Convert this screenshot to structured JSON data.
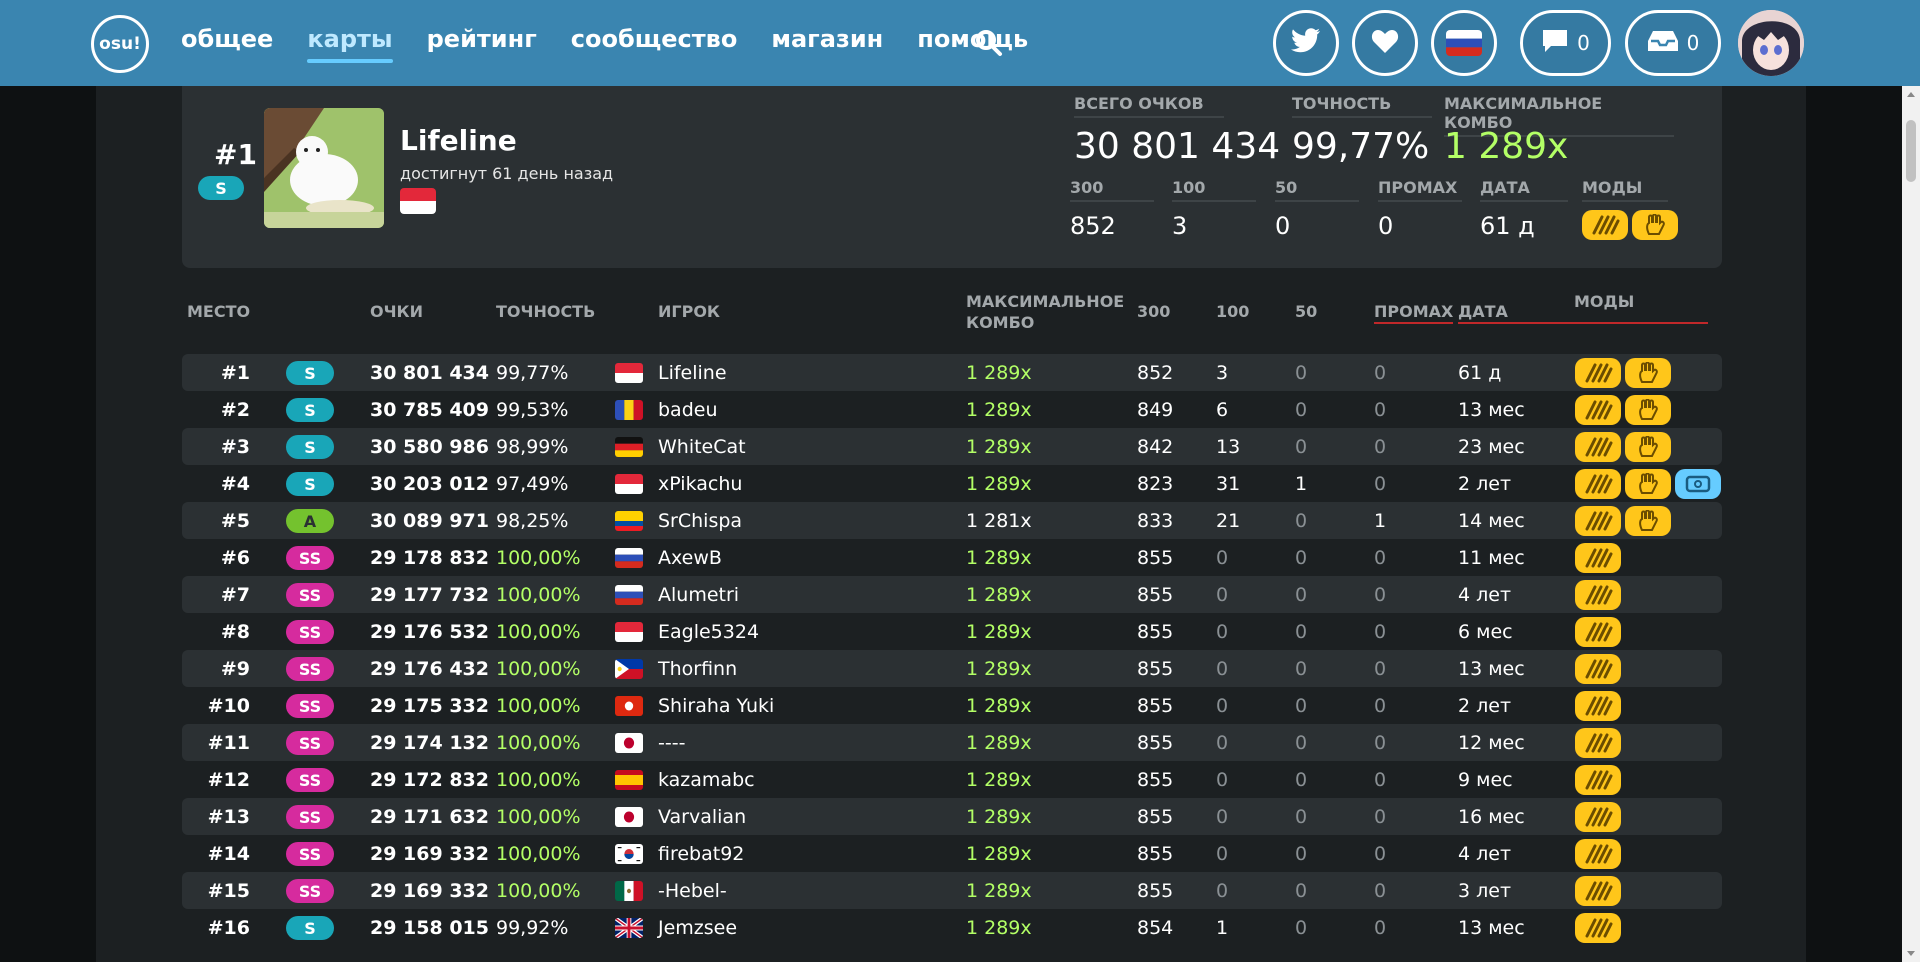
{
  "nav": {
    "logo": "osu!",
    "items": [
      "общее",
      "карты",
      "рейтинг",
      "сообщество",
      "магазин",
      "помощь"
    ],
    "active_index": 1,
    "chat_count": "0",
    "notifications_count": "0"
  },
  "top_score": {
    "rank": "#1",
    "grade": "S",
    "player": "Lifeline",
    "achieved": "достигнут 61 день назад",
    "flag": "SG",
    "labels": {
      "total_score": "ВСЕГО ОЧКОВ",
      "accuracy": "ТОЧНОСТЬ",
      "max_combo": "МАКСИМАЛЬНОЕ КОМБО",
      "c300": "300",
      "c100": "100",
      "c50": "50",
      "miss": "ПРОМАХ",
      "date": "ДАТА",
      "mods": "МОДЫ"
    },
    "total_score": "30 801 434",
    "accuracy": "99,77%",
    "max_combo": "1 289x",
    "c300": "852",
    "c100": "3",
    "c50": "0",
    "miss": "0",
    "date": "61 д",
    "mods": [
      "HD",
      "NF"
    ]
  },
  "table": {
    "headers": {
      "rank": "МЕСТО",
      "score": "ОЧКИ",
      "accuracy": "ТОЧНОСТЬ",
      "player": "ИГРОК",
      "combo_line1": "МАКСИМАЛЬНОЕ",
      "combo_line2": "КОМБО",
      "c300": "300",
      "c100": "100",
      "c50": "50",
      "miss": "ПРОМАХ",
      "date": "ДАТА",
      "mods": "МОДЫ"
    },
    "rows": [
      {
        "rank": "#1",
        "grade": "S",
        "score": "30 801 434",
        "acc": "99,77%",
        "flag": "SG",
        "player": "Lifeline",
        "combo": "1 289x",
        "full": true,
        "c300": "852",
        "c100": "3",
        "c50": "0",
        "miss": "0",
        "date": "61 д",
        "mods": [
          "HD",
          "NF"
        ]
      },
      {
        "rank": "#2",
        "grade": "S",
        "score": "30 785 409",
        "acc": "99,53%",
        "flag": "RO",
        "player": "badeu",
        "combo": "1 289x",
        "full": true,
        "c300": "849",
        "c100": "6",
        "c50": "0",
        "miss": "0",
        "date": "13 мес",
        "mods": [
          "HD",
          "NF"
        ]
      },
      {
        "rank": "#3",
        "grade": "S",
        "score": "30 580 986",
        "acc": "98,99%",
        "flag": "DE",
        "player": "WhiteCat",
        "combo": "1 289x",
        "full": true,
        "c300": "842",
        "c100": "13",
        "c50": "0",
        "miss": "0",
        "date": "23 мес",
        "mods": [
          "HD",
          "NF"
        ]
      },
      {
        "rank": "#4",
        "grade": "S",
        "score": "30 203 012",
        "acc": "97,49%",
        "flag": "SG",
        "player": "xPikachu",
        "combo": "1 289x",
        "full": true,
        "c300": "823",
        "c100": "31",
        "c50": "1",
        "miss": "0",
        "date": "2 лет",
        "mods": [
          "HD",
          "NF",
          "TD"
        ]
      },
      {
        "rank": "#5",
        "grade": "A",
        "score": "30 089 971",
        "acc": "98,25%",
        "flag": "EC",
        "player": "SrChispa",
        "combo": "1 281x",
        "full": false,
        "c300": "833",
        "c100": "21",
        "c50": "0",
        "miss": "1",
        "date": "14 мес",
        "mods": [
          "HD",
          "NF"
        ]
      },
      {
        "rank": "#6",
        "grade": "SS",
        "score": "29 178 832",
        "acc": "100,00%",
        "flag": "RU",
        "player": "AxewB",
        "combo": "1 289x",
        "full": true,
        "c300": "855",
        "c100": "0",
        "c50": "0",
        "miss": "0",
        "date": "11 мес",
        "mods": [
          "HD"
        ]
      },
      {
        "rank": "#7",
        "grade": "SS",
        "score": "29 177 732",
        "acc": "100,00%",
        "flag": "RU",
        "player": "Alumetri",
        "combo": "1 289x",
        "full": true,
        "c300": "855",
        "c100": "0",
        "c50": "0",
        "miss": "0",
        "date": "4 лет",
        "mods": [
          "HD"
        ]
      },
      {
        "rank": "#8",
        "grade": "SS",
        "score": "29 176 532",
        "acc": "100,00%",
        "flag": "SG",
        "player": "Eagle5324",
        "combo": "1 289x",
        "full": true,
        "c300": "855",
        "c100": "0",
        "c50": "0",
        "miss": "0",
        "date": "6 мес",
        "mods": [
          "HD"
        ]
      },
      {
        "rank": "#9",
        "grade": "SS",
        "score": "29 176 432",
        "acc": "100,00%",
        "flag": "PH",
        "player": "Thorfinn",
        "combo": "1 289x",
        "full": true,
        "c300": "855",
        "c100": "0",
        "c50": "0",
        "miss": "0",
        "date": "13 мес",
        "mods": [
          "HD"
        ]
      },
      {
        "rank": "#10",
        "grade": "SS",
        "score": "29 175 332",
        "acc": "100,00%",
        "flag": "HK",
        "player": "Shiraha Yuki",
        "combo": "1 289x",
        "full": true,
        "c300": "855",
        "c100": "0",
        "c50": "0",
        "miss": "0",
        "date": "2 лет",
        "mods": [
          "HD"
        ]
      },
      {
        "rank": "#11",
        "grade": "SS",
        "score": "29 174 132",
        "acc": "100,00%",
        "flag": "JP",
        "player": "----",
        "combo": "1 289x",
        "full": true,
        "c300": "855",
        "c100": "0",
        "c50": "0",
        "miss": "0",
        "date": "12 мес",
        "mods": [
          "HD"
        ]
      },
      {
        "rank": "#12",
        "grade": "SS",
        "score": "29 172 832",
        "acc": "100,00%",
        "flag": "ES",
        "player": "kazamabc",
        "combo": "1 289x",
        "full": true,
        "c300": "855",
        "c100": "0",
        "c50": "0",
        "miss": "0",
        "date": "9 мес",
        "mods": [
          "HD"
        ]
      },
      {
        "rank": "#13",
        "grade": "SS",
        "score": "29 171 632",
        "acc": "100,00%",
        "flag": "JP",
        "player": "Varvalian",
        "combo": "1 289x",
        "full": true,
        "c300": "855",
        "c100": "0",
        "c50": "0",
        "miss": "0",
        "date": "16 мес",
        "mods": [
          "HD"
        ]
      },
      {
        "rank": "#14",
        "grade": "SS",
        "score": "29 169 332",
        "acc": "100,00%",
        "flag": "KR",
        "player": "firebat92",
        "combo": "1 289x",
        "full": true,
        "c300": "855",
        "c100": "0",
        "c50": "0",
        "miss": "0",
        "date": "4 лет",
        "mods": [
          "HD"
        ]
      },
      {
        "rank": "#15",
        "grade": "SS",
        "score": "29 169 332",
        "acc": "100,00%",
        "flag": "MX",
        "player": "-Hebel-",
        "combo": "1 289x",
        "full": true,
        "c300": "855",
        "c100": "0",
        "c50": "0",
        "miss": "0",
        "date": "3 лет",
        "mods": [
          "HD"
        ]
      },
      {
        "rank": "#16",
        "grade": "S",
        "score": "29 158 015",
        "acc": "99,92%",
        "flag": "GB",
        "player": "Jemzsee",
        "combo": "1 289x",
        "full": true,
        "c300": "854",
        "c100": "1",
        "c50": "0",
        "miss": "0",
        "date": "13 мес",
        "mods": [
          "HD"
        ]
      }
    ]
  },
  "colors": {
    "header_bg": "#3a85b0",
    "card_bg": "#2b3033",
    "grade_s": "#19a6b8",
    "grade_a": "#74c22e",
    "grade_ss": "#d62b9e",
    "full_combo": "#b3ff66",
    "mod_yellow": "#ffc61a",
    "mod_blue": "#66ccff"
  },
  "icons": {
    "search": "search-icon",
    "twitter": "twitter-icon",
    "support": "heart-icon",
    "language": "flag-icon",
    "chat": "chat-icon",
    "notifications": "inbox-icon"
  }
}
